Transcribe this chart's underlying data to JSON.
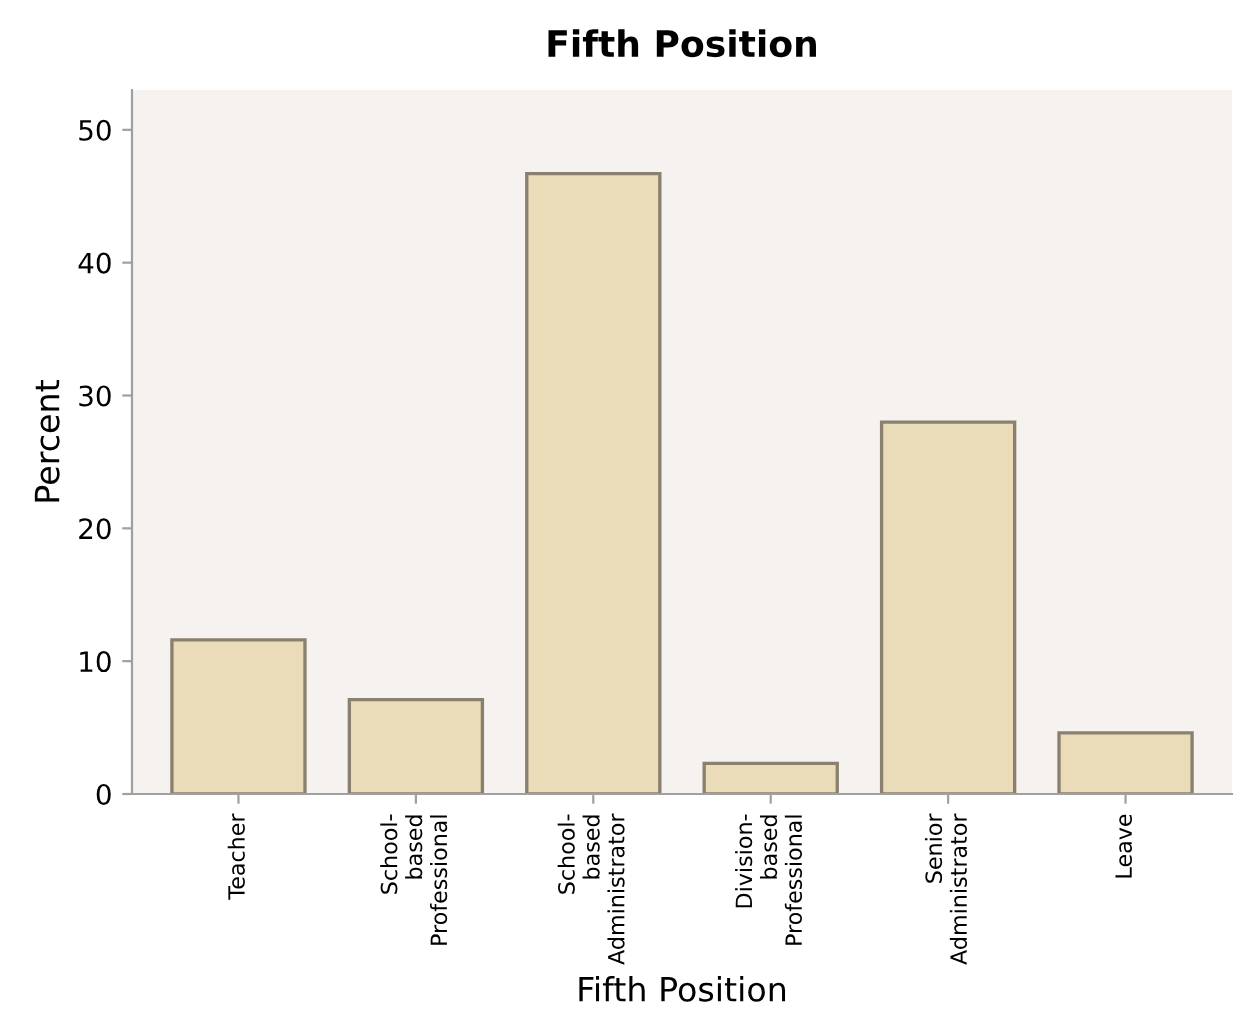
{
  "chart_data": {
    "type": "bar",
    "title": "Fifth Position",
    "xlabel": "Fifth Position",
    "ylabel": "Percent",
    "categories": [
      "Teacher",
      "School-\nbased\nProfessional",
      "School-\nbased\nAdministrator",
      "Division-\nbased\nProfessional",
      "Senior\nAdministrator",
      "Leave"
    ],
    "values": [
      11.6,
      7.1,
      46.7,
      2.3,
      28.0,
      4.6
    ],
    "color": "#eadcb9",
    "ylim": [
      0,
      53
    ],
    "yticks": [
      0,
      10,
      20,
      30,
      40,
      50
    ],
    "grid": false
  }
}
